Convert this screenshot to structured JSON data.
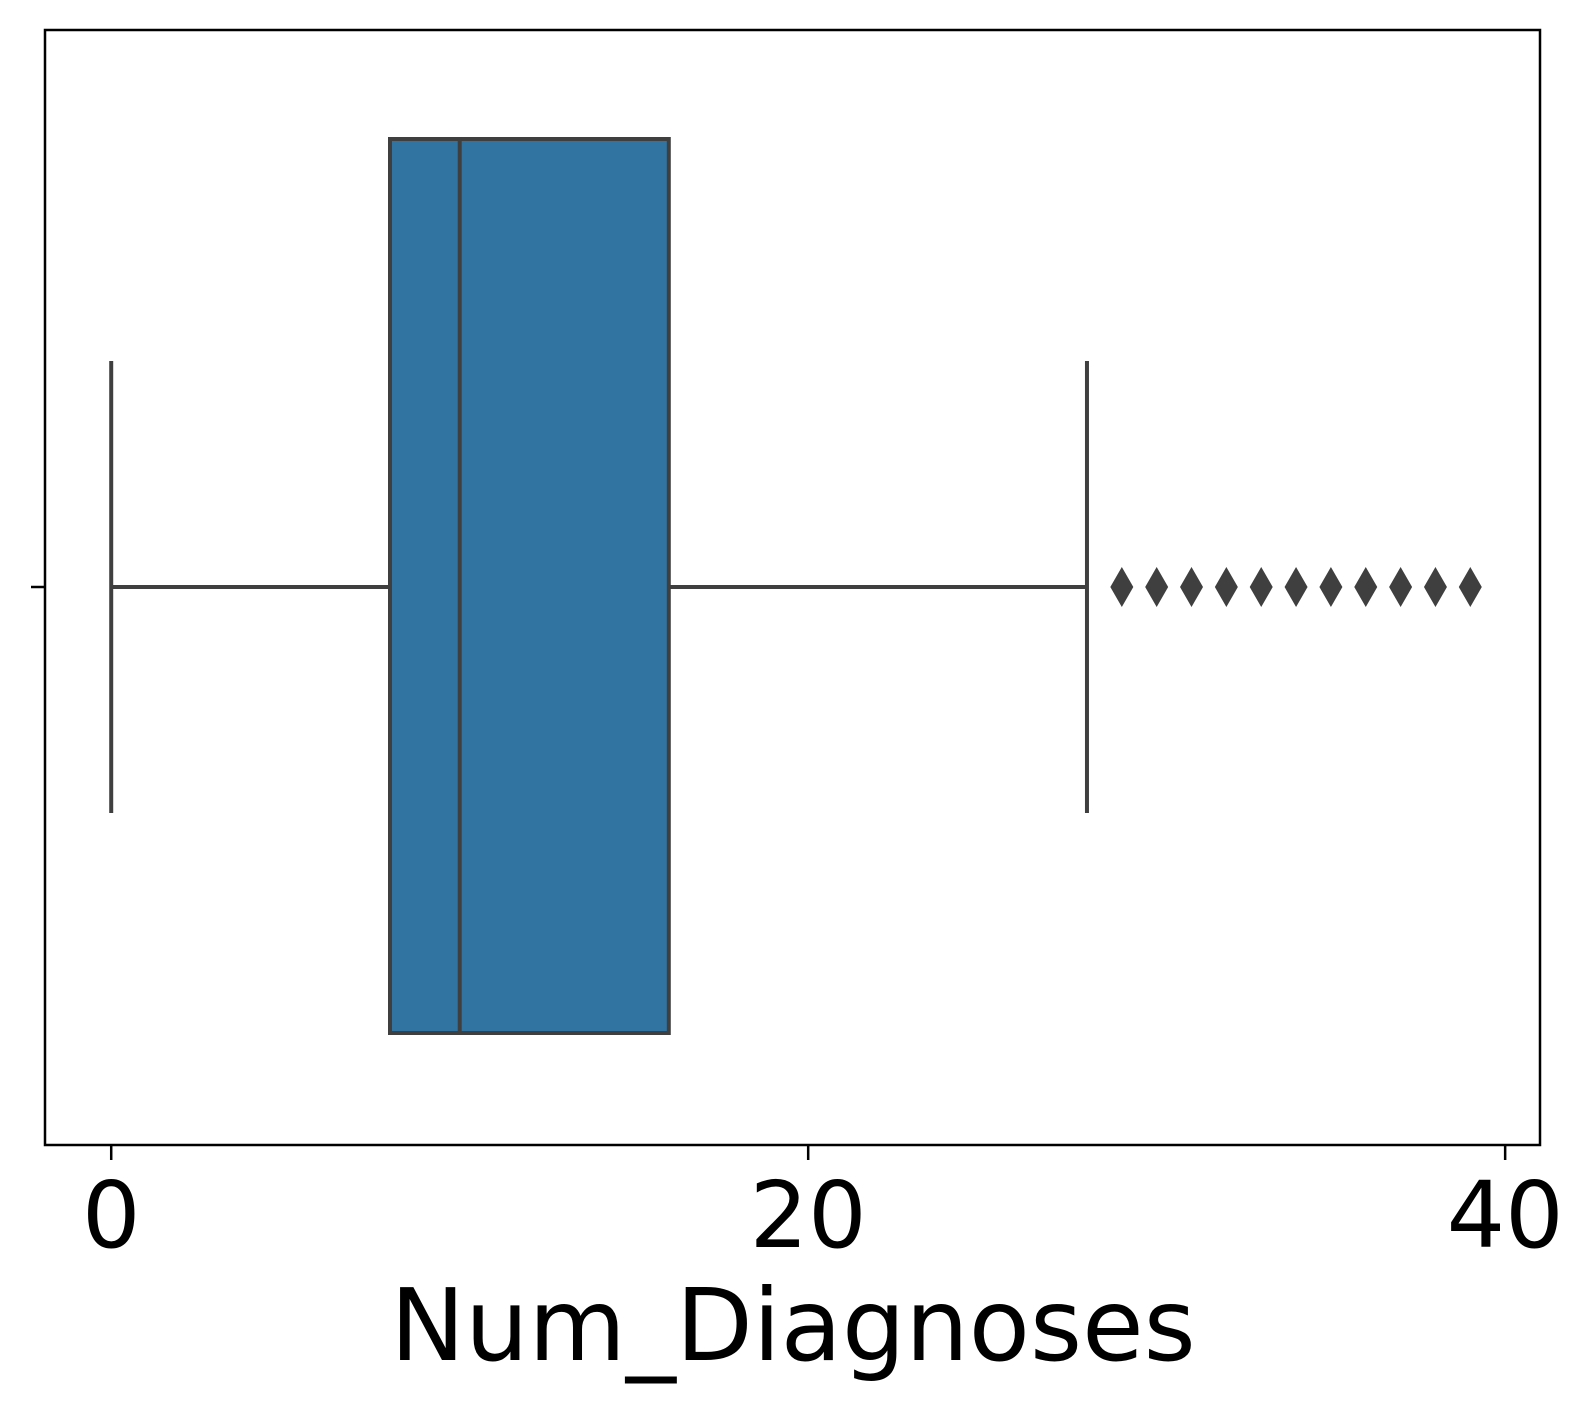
{
  "chart_data": {
    "type": "box",
    "orientation": "horizontal",
    "xlabel": "Num_Diagnoses",
    "ylabel": "",
    "xlim": [
      -1.9,
      41
    ],
    "xticks": [
      0,
      20,
      40
    ],
    "tick_labels": [
      "0",
      "20",
      "40"
    ],
    "grid": false,
    "box": {
      "whisker_low": 0,
      "q1": 8,
      "median": 10,
      "q3": 16,
      "whisker_high": 28,
      "outliers": [
        29,
        30,
        31,
        32,
        33,
        34,
        35,
        36,
        37,
        38,
        39
      ]
    },
    "colors": {
      "box_fill": "#3274a1",
      "line": "#3f3f3f",
      "outlier": "#3f3f3f",
      "frame": "#000000"
    }
  }
}
